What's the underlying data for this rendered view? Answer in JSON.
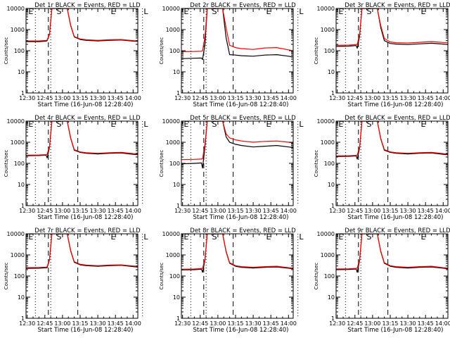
{
  "chart_data": [
    {
      "type": "line",
      "title": "Det 1r BLACK = Events, RED = LLD",
      "xlabel": "Start Time (16-Jun-08 12:28:40)",
      "ylabel": "Counts/sec",
      "x_ticks": [
        "12:30",
        "12:45",
        "13:00",
        "13:15",
        "13:30",
        "13:45",
        "14:00"
      ],
      "y_ticks": [
        "1",
        "10",
        "100",
        "1000",
        "10000"
      ],
      "y_scale": "log",
      "ylim": [
        1,
        10000
      ],
      "markers": [
        "E",
        "S",
        "E",
        "L"
      ],
      "series": [
        {
          "color": "#000000",
          "x": [
            "12:29",
            "12:40",
            "12:46",
            "12:47",
            "12:49",
            "12:51",
            "13:04",
            "13:07",
            "13:10",
            "13:15",
            "13:20",
            "13:30",
            "13:40",
            "13:50",
            "14:00",
            "14:04"
          ],
          "values": [
            270,
            270,
            285,
            300,
            600,
            10000,
            10000,
            1500,
            450,
            340,
            310,
            290,
            310,
            320,
            285,
            275
          ]
        },
        {
          "color": "#ff0000",
          "x": [
            "12:29",
            "12:40",
            "12:46",
            "12:47",
            "12:49",
            "12:51",
            "13:04",
            "13:07",
            "13:10",
            "13:15",
            "13:20",
            "13:30",
            "13:40",
            "13:50",
            "14:00",
            "14:04"
          ],
          "values": [
            290,
            290,
            305,
            320,
            650,
            10000,
            10000,
            1600,
            470,
            360,
            330,
            310,
            330,
            340,
            300,
            290
          ]
        }
      ]
    },
    {
      "type": "line",
      "title": "Det 2r BLACK = Events, RED = LLD",
      "xlabel": "Start Time (16-Jun-08 12:28:40)",
      "ylabel": "Counts/sec",
      "x_ticks": [
        "12:30",
        "12:45",
        "13:00",
        "13:15",
        "13:30",
        "13:45",
        "14:00"
      ],
      "y_ticks": [
        "1",
        "10",
        "100",
        "1000",
        "10000"
      ],
      "y_scale": "log",
      "ylim": [
        1,
        10000
      ],
      "markers": [
        "E",
        "S",
        "E",
        "L"
      ],
      "series": [
        {
          "color": "#000000",
          "x": [
            "12:29",
            "12:40",
            "12:46",
            "12:47",
            "12:49",
            "12:51",
            "13:04",
            "13:07",
            "13:10",
            "13:15",
            "13:20",
            "13:30",
            "13:40",
            "13:50",
            "14:00",
            "14:04"
          ],
          "values": [
            42,
            44,
            45,
            38,
            200,
            10000,
            10000,
            400,
            65,
            62,
            58,
            55,
            62,
            65,
            55,
            50
          ]
        },
        {
          "color": "#ff0000",
          "x": [
            "12:29",
            "12:40",
            "12:46",
            "12:47",
            "12:49",
            "12:51",
            "13:04",
            "13:07",
            "13:10",
            "13:15",
            "13:20",
            "13:30",
            "13:40",
            "13:50",
            "14:00",
            "14:04"
          ],
          "values": [
            90,
            92,
            95,
            100,
            450,
            10000,
            10000,
            1200,
            180,
            140,
            125,
            115,
            135,
            140,
            110,
            100
          ]
        }
      ]
    },
    {
      "type": "line",
      "title": "Det 3r BLACK = Events, RED = LLD",
      "xlabel": "Start Time (16-Jun-08 12:28:40)",
      "ylabel": "Counts/sec",
      "x_ticks": [
        "12:30",
        "12:45",
        "13:00",
        "13:15",
        "13:30",
        "13:45",
        "14:00"
      ],
      "y_ticks": [
        "1",
        "10",
        "100",
        "1000",
        "10000"
      ],
      "y_scale": "log",
      "ylim": [
        1,
        10000
      ],
      "markers": [
        "E",
        "S",
        "E",
        "L"
      ],
      "series": [
        {
          "color": "#000000",
          "x": [
            "12:29",
            "12:40",
            "12:46",
            "12:47",
            "12:49",
            "12:51",
            "13:04",
            "13:07",
            "13:10",
            "13:15",
            "13:20",
            "13:30",
            "13:40",
            "13:50",
            "14:00",
            "14:04"
          ],
          "values": [
            160,
            165,
            175,
            130,
            500,
            10000,
            10000,
            1200,
            300,
            220,
            205,
            195,
            210,
            225,
            205,
            195
          ]
        },
        {
          "color": "#ff0000",
          "x": [
            "12:29",
            "12:40",
            "12:46",
            "12:47",
            "12:49",
            "12:51",
            "13:04",
            "13:07",
            "13:10",
            "13:15",
            "13:20",
            "13:30",
            "13:40",
            "13:50",
            "14:00",
            "14:04"
          ],
          "values": [
            180,
            185,
            195,
            200,
            600,
            10000,
            10000,
            1500,
            380,
            260,
            240,
            230,
            250,
            270,
            245,
            235
          ]
        }
      ]
    },
    {
      "type": "line",
      "title": "Det 4r BLACK = Events, RED = LLD",
      "xlabel": "Start Time (16-Jun-08 12:28:40)",
      "ylabel": "Counts/sec",
      "x_ticks": [
        "12:30",
        "12:45",
        "13:00",
        "13:15",
        "13:30",
        "13:45",
        "14:00"
      ],
      "y_ticks": [
        "1",
        "10",
        "100",
        "1000",
        "10000"
      ],
      "y_scale": "log",
      "ylim": [
        1,
        10000
      ],
      "markers": [
        "E",
        "S",
        "E",
        "L"
      ],
      "series": [
        {
          "color": "#000000",
          "x": [
            "12:29",
            "12:40",
            "12:46",
            "12:47",
            "12:49",
            "12:51",
            "13:04",
            "13:07",
            "13:10",
            "13:15",
            "13:20",
            "13:30",
            "13:40",
            "13:50",
            "14:00",
            "14:04"
          ],
          "values": [
            230,
            235,
            245,
            180,
            600,
            10000,
            10000,
            1500,
            420,
            330,
            300,
            280,
            300,
            310,
            270,
            260
          ]
        },
        {
          "color": "#ff0000",
          "x": [
            "12:29",
            "12:40",
            "12:46",
            "12:47",
            "12:49",
            "12:51",
            "13:04",
            "13:07",
            "13:10",
            "13:15",
            "13:20",
            "13:30",
            "13:40",
            "13:50",
            "14:00",
            "14:04"
          ],
          "values": [
            245,
            250,
            260,
            270,
            650,
            10000,
            10000,
            1600,
            450,
            350,
            320,
            300,
            320,
            330,
            290,
            280
          ]
        }
      ]
    },
    {
      "type": "line",
      "title": "Det 5r BLACK = Events, RED = LLD",
      "xlabel": "Start Time (16-Jun-08 12:28:40)",
      "ylabel": "Counts/sec",
      "x_ticks": [
        "12:30",
        "12:45",
        "13:00",
        "13:15",
        "13:30",
        "13:45",
        "14:00"
      ],
      "y_ticks": [
        "1",
        "10",
        "100",
        "1000",
        "10000"
      ],
      "y_scale": "log",
      "ylim": [
        1,
        10000
      ],
      "markers": [
        "E",
        "S",
        "E",
        "L"
      ],
      "series": [
        {
          "color": "#000000",
          "x": [
            "12:29",
            "12:40",
            "12:46",
            "12:47",
            "12:49",
            "12:51",
            "13:04",
            "13:07",
            "13:10",
            "13:15",
            "13:20",
            "13:30",
            "13:40",
            "13:50",
            "14:00",
            "14:04"
          ],
          "values": [
            95,
            100,
            105,
            60,
            600,
            10000,
            10000,
            1800,
            1000,
            800,
            700,
            600,
            650,
            700,
            600,
            560
          ]
        },
        {
          "color": "#ff0000",
          "x": [
            "12:29",
            "12:40",
            "12:46",
            "12:47",
            "12:49",
            "12:51",
            "13:04",
            "13:07",
            "13:10",
            "13:15",
            "13:20",
            "13:30",
            "13:40",
            "13:50",
            "14:00",
            "14:04"
          ],
          "values": [
            150,
            155,
            160,
            165,
            800,
            10000,
            10000,
            2500,
            1600,
            1300,
            1150,
            1000,
            1100,
            1150,
            1000,
            950
          ]
        }
      ]
    },
    {
      "type": "line",
      "title": "Det 6r BLACK = Events, RED = LLD",
      "xlabel": "Start Time (16-Jun-08 12:28:40)",
      "ylabel": "Counts/sec",
      "x_ticks": [
        "12:30",
        "12:45",
        "13:00",
        "13:15",
        "13:30",
        "13:45",
        "14:00"
      ],
      "y_ticks": [
        "1",
        "10",
        "100",
        "1000",
        "10000"
      ],
      "y_scale": "log",
      "ylim": [
        1,
        10000
      ],
      "markers": [
        "E",
        "S",
        "E",
        "L"
      ],
      "series": [
        {
          "color": "#000000",
          "x": [
            "12:29",
            "12:40",
            "12:46",
            "12:47",
            "12:49",
            "12:51",
            "13:04",
            "13:07",
            "13:10",
            "13:15",
            "13:20",
            "13:30",
            "13:40",
            "13:50",
            "14:00",
            "14:04"
          ],
          "values": [
            210,
            215,
            225,
            160,
            550,
            10000,
            10000,
            1400,
            420,
            330,
            300,
            280,
            300,
            310,
            270,
            255
          ]
        },
        {
          "color": "#ff0000",
          "x": [
            "12:29",
            "12:40",
            "12:46",
            "12:47",
            "12:49",
            "12:51",
            "13:04",
            "13:07",
            "13:10",
            "13:15",
            "13:20",
            "13:30",
            "13:40",
            "13:50",
            "14:00",
            "14:04"
          ],
          "values": [
            225,
            230,
            240,
            250,
            600,
            10000,
            10000,
            1500,
            450,
            350,
            320,
            300,
            320,
            330,
            290,
            275
          ]
        }
      ]
    },
    {
      "type": "line",
      "title": "Det 7r BLACK = Events, RED = LLD",
      "xlabel": "Start Time (16-Jun-08 12:28:40)",
      "ylabel": "Counts/sec",
      "x_ticks": [
        "12:30",
        "12:45",
        "13:00",
        "13:15",
        "13:30",
        "13:45",
        "14:00"
      ],
      "y_ticks": [
        "1",
        "10",
        "100",
        "1000",
        "10000"
      ],
      "y_scale": "log",
      "ylim": [
        1,
        10000
      ],
      "markers": [
        "E",
        "S",
        "E",
        "L"
      ],
      "series": [
        {
          "color": "#000000",
          "x": [
            "12:29",
            "12:40",
            "12:46",
            "12:47",
            "12:49",
            "12:51",
            "13:04",
            "13:07",
            "13:10",
            "13:15",
            "13:20",
            "13:30",
            "13:40",
            "13:50",
            "14:00",
            "14:04"
          ],
          "values": [
            230,
            235,
            245,
            250,
            600,
            10000,
            10000,
            1500,
            450,
            340,
            310,
            290,
            310,
            320,
            280,
            265
          ]
        },
        {
          "color": "#ff0000",
          "x": [
            "12:29",
            "12:40",
            "12:46",
            "12:47",
            "12:49",
            "12:51",
            "13:04",
            "13:07",
            "13:10",
            "13:15",
            "13:20",
            "13:30",
            "13:40",
            "13:50",
            "14:00",
            "14:04"
          ],
          "values": [
            250,
            255,
            265,
            275,
            650,
            10000,
            10000,
            1600,
            480,
            360,
            330,
            310,
            330,
            340,
            300,
            285
          ]
        }
      ]
    },
    {
      "type": "line",
      "title": "Det 8r BLACK = Events, RED = LLD",
      "xlabel": "Start Time (16-Jun-08 12:28:40)",
      "ylabel": "Counts/sec",
      "x_ticks": [
        "12:30",
        "12:45",
        "13:00",
        "13:15",
        "13:30",
        "13:45",
        "14:00"
      ],
      "y_ticks": [
        "1",
        "10",
        "100",
        "1000",
        "10000"
      ],
      "y_scale": "log",
      "ylim": [
        1,
        10000
      ],
      "markers": [
        "E",
        "S",
        "E",
        "L"
      ],
      "series": [
        {
          "color": "#000000",
          "x": [
            "12:29",
            "12:40",
            "12:46",
            "12:47",
            "12:49",
            "12:51",
            "13:04",
            "13:07",
            "13:10",
            "13:15",
            "13:20",
            "13:30",
            "13:40",
            "13:50",
            "14:00",
            "14:04"
          ],
          "values": [
            195,
            200,
            210,
            150,
            550,
            10000,
            10000,
            1400,
            400,
            290,
            260,
            240,
            260,
            270,
            235,
            220
          ]
        },
        {
          "color": "#ff0000",
          "x": [
            "12:29",
            "12:40",
            "12:46",
            "12:47",
            "12:49",
            "12:51",
            "13:04",
            "13:07",
            "13:10",
            "13:15",
            "13:20",
            "13:30",
            "13:40",
            "13:50",
            "14:00",
            "14:04"
          ],
          "values": [
            210,
            215,
            225,
            235,
            600,
            10000,
            10000,
            1500,
            430,
            310,
            280,
            260,
            280,
            290,
            250,
            240
          ]
        }
      ]
    },
    {
      "type": "line",
      "title": "Det 9r BLACK = Events, RED = LLD",
      "xlabel": "Start Time (16-Jun-08 12:28:40)",
      "ylabel": "Counts/sec",
      "x_ticks": [
        "12:30",
        "12:45",
        "13:00",
        "13:15",
        "13:30",
        "13:45",
        "14:00"
      ],
      "y_ticks": [
        "1",
        "10",
        "100",
        "1000",
        "10000"
      ],
      "y_scale": "log",
      "ylim": [
        1,
        10000
      ],
      "markers": [
        "E",
        "S",
        "E",
        "L"
      ],
      "series": [
        {
          "color": "#000000",
          "x": [
            "12:29",
            "12:40",
            "12:46",
            "12:47",
            "12:49",
            "12:51",
            "13:04",
            "13:07",
            "13:10",
            "13:15",
            "13:20",
            "13:30",
            "13:40",
            "13:50",
            "14:00",
            "14:04"
          ],
          "values": [
            200,
            205,
            215,
            150,
            550,
            10000,
            10000,
            1400,
            400,
            290,
            260,
            240,
            260,
            270,
            235,
            220
          ]
        },
        {
          "color": "#ff0000",
          "x": [
            "12:29",
            "12:40",
            "12:46",
            "12:47",
            "12:49",
            "12:51",
            "13:04",
            "13:07",
            "13:10",
            "13:15",
            "13:20",
            "13:30",
            "13:40",
            "13:50",
            "14:00",
            "14:04"
          ],
          "values": [
            215,
            220,
            230,
            240,
            600,
            10000,
            10000,
            1500,
            430,
            310,
            280,
            260,
            280,
            290,
            250,
            240
          ]
        }
      ]
    }
  ]
}
